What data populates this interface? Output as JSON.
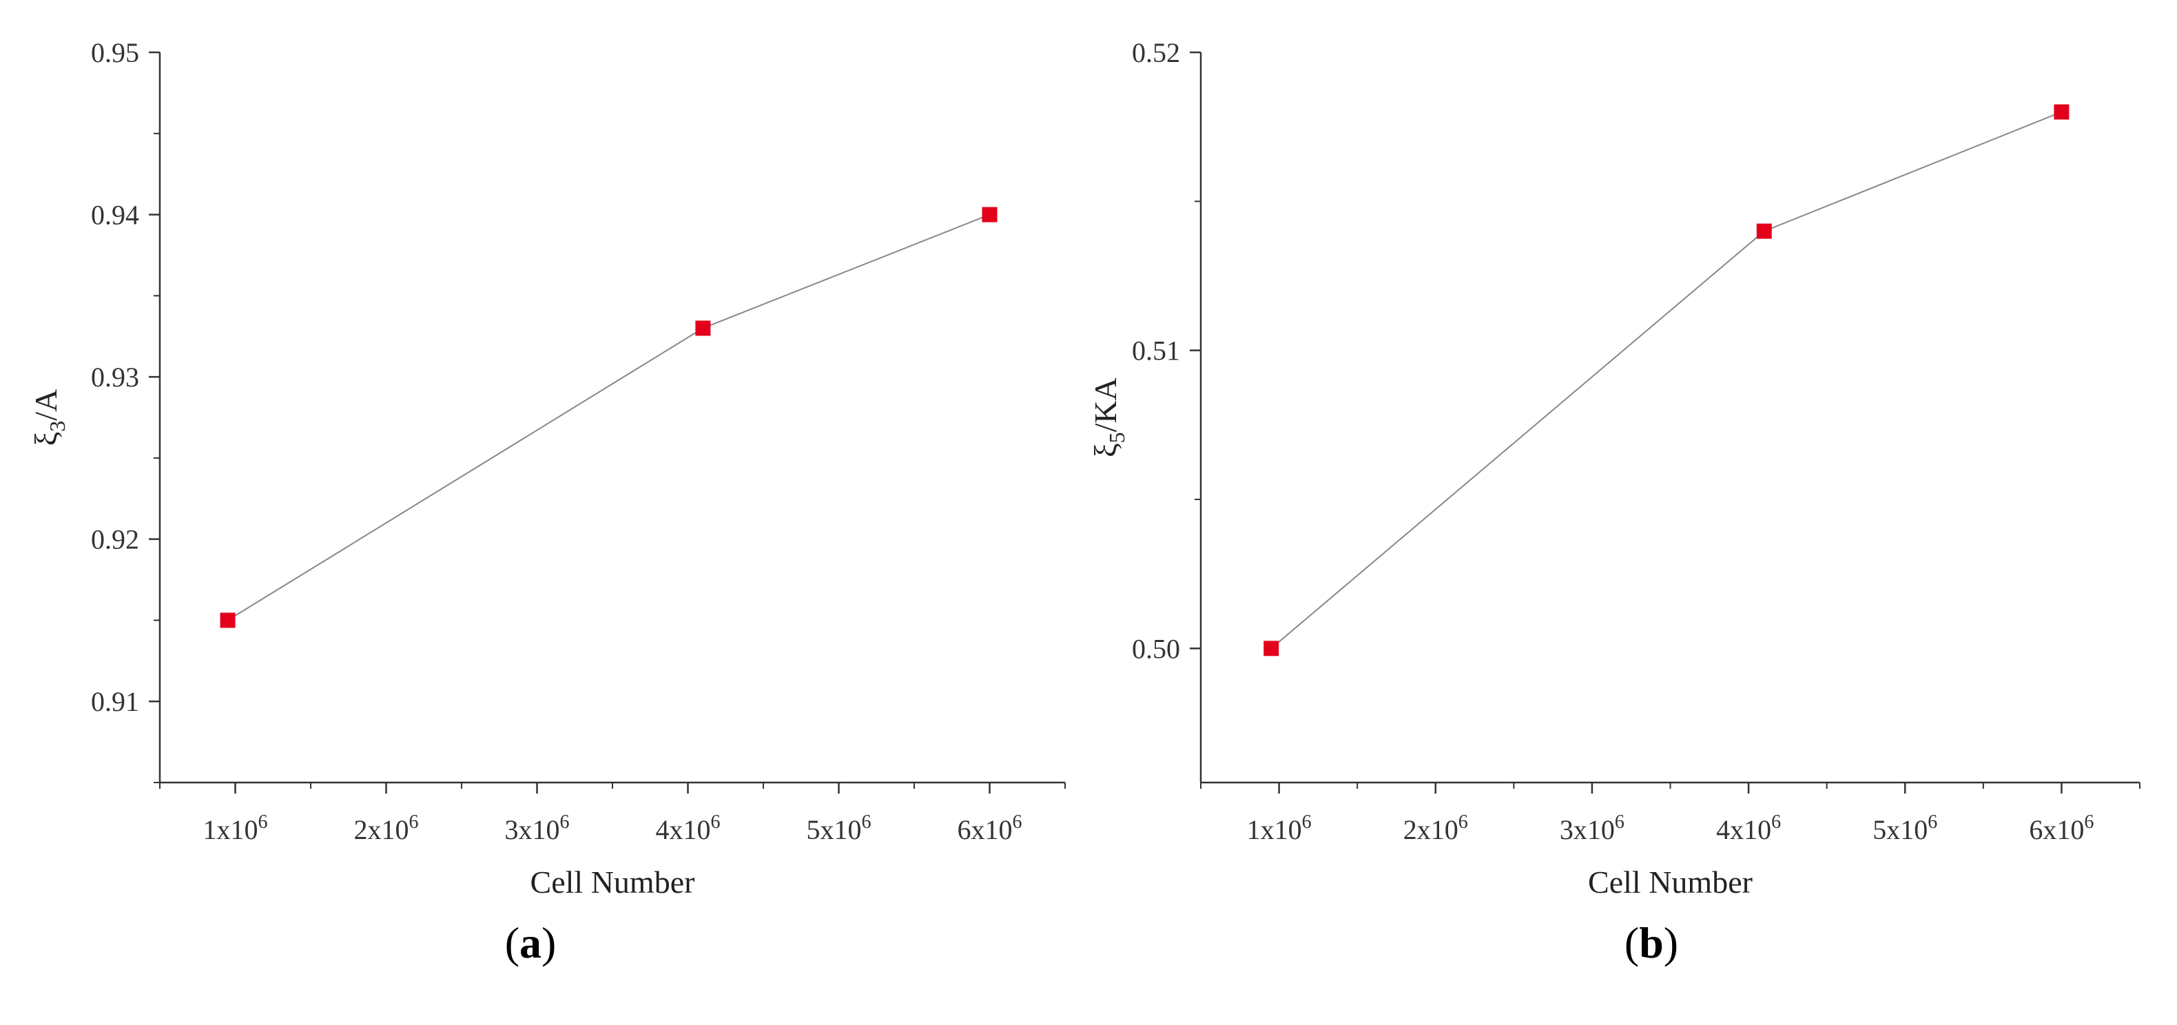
{
  "colors": {
    "marker": "#e3001b",
    "line": "#888888",
    "axis": "#333333"
  },
  "chart_data": [
    {
      "type": "line",
      "panel_label": "a",
      "x_tick_labels": [
        {
          "base": "1x10",
          "exp": "6"
        },
        {
          "base": "2x10",
          "exp": "6"
        },
        {
          "base": "3x10",
          "exp": "6"
        },
        {
          "base": "4x10",
          "exp": "6"
        },
        {
          "base": "5x10",
          "exp": "6"
        },
        {
          "base": "6x10",
          "exp": "6"
        }
      ],
      "x_ticks": [
        1000000,
        2000000,
        3000000,
        4000000,
        5000000,
        6000000
      ],
      "xlim": [
        500000,
        6500000
      ],
      "y_ticks": [
        0.91,
        0.92,
        0.93,
        0.94,
        0.95
      ],
      "y_tick_labels": [
        "0.91",
        "0.92",
        "0.93",
        "0.94",
        "0.95"
      ],
      "ylim": [
        0.905,
        0.95
      ],
      "xlabel": "Cell Number",
      "ylabel": {
        "symbol": "ξ",
        "sub": "3",
        "unit": "/A"
      },
      "series": [
        {
          "x": [
            950000,
            4100000,
            6000000
          ],
          "y": [
            0.915,
            0.933,
            0.94
          ]
        }
      ]
    },
    {
      "type": "line",
      "panel_label": "b",
      "x_tick_labels": [
        {
          "base": "1x10",
          "exp": "6"
        },
        {
          "base": "2x10",
          "exp": "6"
        },
        {
          "base": "3x10",
          "exp": "6"
        },
        {
          "base": "4x10",
          "exp": "6"
        },
        {
          "base": "5x10",
          "exp": "6"
        },
        {
          "base": "6x10",
          "exp": "6"
        }
      ],
      "x_ticks": [
        1000000,
        2000000,
        3000000,
        4000000,
        5000000,
        6000000
      ],
      "xlim": [
        500000,
        6500000
      ],
      "y_ticks": [
        0.5,
        0.51,
        0.52
      ],
      "y_tick_labels": [
        "0.50",
        "0.51",
        "0.52"
      ],
      "ylim": [
        0.4955,
        0.52
      ],
      "xlabel": "Cell Number",
      "ylabel": {
        "symbol": "ξ",
        "sub": "5",
        "unit": "/KA"
      },
      "series": [
        {
          "x": [
            950000,
            4100000,
            6000000
          ],
          "y": [
            0.5,
            0.514,
            0.518
          ]
        }
      ]
    }
  ]
}
